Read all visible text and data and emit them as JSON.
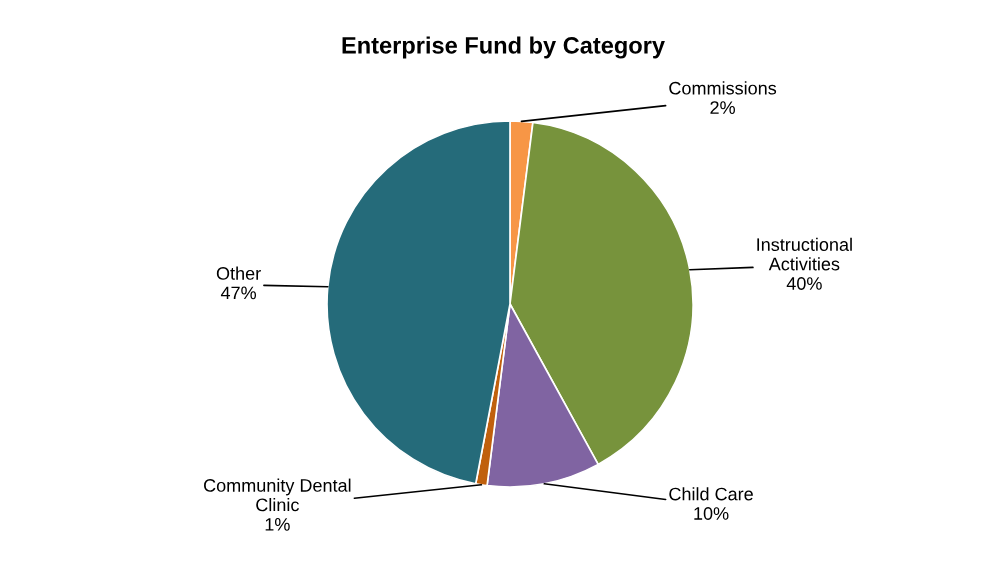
{
  "chart_data": {
    "type": "pie",
    "title": "Enterprise Fund by Category",
    "categories": [
      "Commissions",
      "Instructional\nActivities",
      "Child Care",
      "Community Dental\nClinic",
      "Other"
    ],
    "values": [
      2,
      40,
      10,
      1,
      47
    ],
    "value_labels": [
      "2%",
      "40%",
      "10%",
      "1%",
      "47%"
    ],
    "colors": [
      "#f79646",
      "#77933c",
      "#8064a2",
      "#c0600d",
      "#256b7a"
    ],
    "legend": false
  }
}
